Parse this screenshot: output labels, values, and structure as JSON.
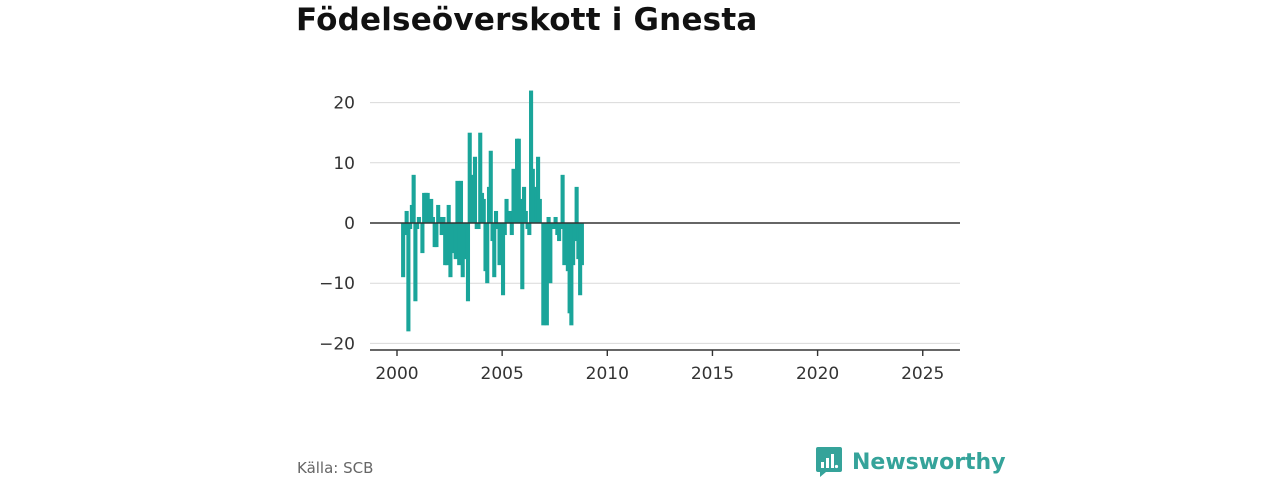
{
  "title": "Födelseöverskott i Gnesta",
  "source": "Källa: SCB",
  "brand": {
    "name": "Newsworthy",
    "icon": "bar-chart-speech-bubble-icon"
  },
  "colors": {
    "bar": "#1aa59a",
    "brand": "#35a39a",
    "grid": "#d9d9d9",
    "axis": "#333333"
  },
  "chart_data": {
    "type": "bar",
    "title": "Födelseöverskott i Gnesta",
    "xlabel": "",
    "ylabel": "",
    "ylim": [
      -20,
      22
    ],
    "yticks": [
      20,
      10,
      0,
      -10,
      -20
    ],
    "ytick_labels": [
      "20",
      "10",
      "0",
      "−10",
      "−20"
    ],
    "xlim": [
      1999.9,
      2026.5
    ],
    "xticks": [
      2000,
      2005,
      2010,
      2015,
      2020,
      2025
    ],
    "xtick_labels": [
      "2000",
      "2005",
      "2010",
      "2015",
      "2020",
      "2025"
    ],
    "grid": true,
    "series": [
      {
        "frequency": "monthly",
        "start": "2000-01",
        "values": [
          0,
          0,
          0,
          -9,
          -2,
          2,
          -18,
          -1,
          3,
          8,
          -13,
          -1,
          1,
          0,
          -5,
          5,
          5,
          5,
          3,
          4,
          1,
          -4,
          -4,
          3,
          1,
          -2,
          1,
          -7,
          -7,
          3,
          -9,
          -5,
          0,
          -6,
          7,
          -7,
          7,
          -9,
          -6,
          -4,
          -13,
          15,
          2,
          8,
          11,
          -1,
          -1,
          15,
          5,
          4,
          -8,
          -10,
          6,
          12,
          -3,
          -9,
          2,
          -1,
          -7,
          0,
          -12,
          -2,
          4,
          1,
          2,
          -2,
          9,
          2,
          14,
          14,
          4,
          -11,
          6,
          2,
          -1,
          -2,
          22,
          9,
          6,
          5,
          11,
          4,
          0,
          -17,
          0,
          -17,
          1,
          -10,
          -1,
          -1,
          1,
          -2,
          -3,
          -1,
          8,
          -7,
          -6,
          -8,
          -15,
          -17,
          -7,
          -3,
          6,
          -6,
          -12,
          -7
        ]
      }
    ]
  }
}
